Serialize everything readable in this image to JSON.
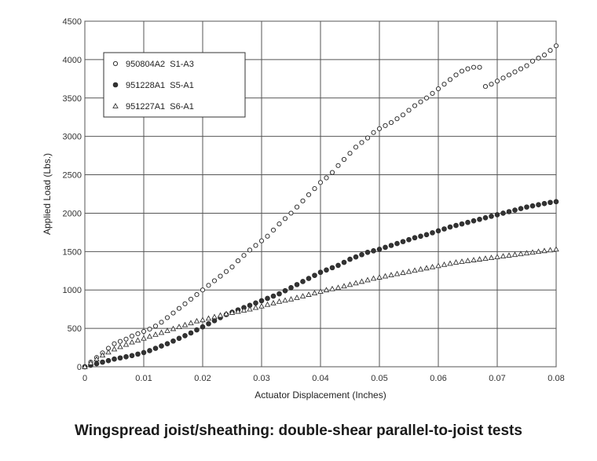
{
  "caption": "Wingspread joist/sheathing: double-shear parallel-to-joist tests",
  "chart_data": {
    "type": "scatter",
    "title": "",
    "xlabel": "Actuator Displacement (Inches)",
    "ylabel": "Applied Load (Lbs.)",
    "xlim": [
      0,
      0.08
    ],
    "ylim": [
      0,
      4500
    ],
    "x_ticks": [
      0,
      0.01,
      0.02,
      0.03,
      0.04,
      0.05,
      0.06,
      0.07,
      0.08
    ],
    "x_tick_labels": [
      "0",
      "0.01",
      "0.02",
      "0.03",
      "0.04",
      "0.05",
      "0.06",
      "0.07",
      "0.08"
    ],
    "y_ticks": [
      0,
      500,
      1000,
      1500,
      2000,
      2500,
      3000,
      3500,
      4000,
      4500
    ],
    "y_tick_labels": [
      "0",
      "500",
      "1000",
      "1500",
      "2000",
      "2500",
      "3000",
      "3500",
      "4000",
      "4500"
    ],
    "grid": true,
    "legend_position": "top-left",
    "series": [
      {
        "name": "950804A2  S1-A3",
        "marker": "open-circle",
        "x": [
          0.0,
          0.001,
          0.002,
          0.003,
          0.004,
          0.005,
          0.006,
          0.007,
          0.008,
          0.009,
          0.01,
          0.011,
          0.012,
          0.013,
          0.014,
          0.015,
          0.016,
          0.017,
          0.018,
          0.019,
          0.02,
          0.021,
          0.022,
          0.023,
          0.024,
          0.025,
          0.026,
          0.027,
          0.028,
          0.029,
          0.03,
          0.031,
          0.032,
          0.033,
          0.034,
          0.035,
          0.036,
          0.037,
          0.038,
          0.039,
          0.04,
          0.041,
          0.042,
          0.043,
          0.044,
          0.045,
          0.046,
          0.047,
          0.048,
          0.049,
          0.05,
          0.051,
          0.052,
          0.053,
          0.054,
          0.055,
          0.056,
          0.057,
          0.058,
          0.059,
          0.06,
          0.061,
          0.062,
          0.063,
          0.064,
          0.065,
          0.066,
          0.067,
          0.068,
          0.069,
          0.07,
          0.071,
          0.072,
          0.073,
          0.074,
          0.075,
          0.076,
          0.077,
          0.078,
          0.079,
          0.08
        ],
        "y": [
          0,
          60,
          120,
          180,
          240,
          300,
          330,
          360,
          400,
          430,
          460,
          490,
          530,
          580,
          640,
          700,
          760,
          820,
          880,
          940,
          1000,
          1060,
          1120,
          1180,
          1240,
          1300,
          1380,
          1450,
          1520,
          1580,
          1640,
          1700,
          1780,
          1860,
          1930,
          2000,
          2080,
          2160,
          2240,
          2320,
          2400,
          2460,
          2530,
          2620,
          2700,
          2780,
          2860,
          2920,
          2980,
          3050,
          3100,
          3140,
          3180,
          3230,
          3280,
          3340,
          3400,
          3450,
          3500,
          3560,
          3620,
          3680,
          3740,
          3800,
          3850,
          3880,
          3900,
          3900,
          3650,
          3680,
          3720,
          3760,
          3800,
          3840,
          3880,
          3920,
          3980,
          4020,
          4060,
          4120,
          4180
        ]
      },
      {
        "name": "951228A1  S5-A1",
        "marker": "filled-circle",
        "x": [
          0.0,
          0.001,
          0.002,
          0.003,
          0.004,
          0.005,
          0.006,
          0.007,
          0.008,
          0.009,
          0.01,
          0.011,
          0.012,
          0.013,
          0.014,
          0.015,
          0.016,
          0.017,
          0.018,
          0.019,
          0.02,
          0.021,
          0.022,
          0.023,
          0.024,
          0.025,
          0.026,
          0.027,
          0.028,
          0.029,
          0.03,
          0.031,
          0.032,
          0.033,
          0.034,
          0.035,
          0.036,
          0.037,
          0.038,
          0.039,
          0.04,
          0.041,
          0.042,
          0.043,
          0.044,
          0.045,
          0.046,
          0.047,
          0.048,
          0.049,
          0.05,
          0.051,
          0.052,
          0.053,
          0.054,
          0.055,
          0.056,
          0.057,
          0.058,
          0.059,
          0.06,
          0.061,
          0.062,
          0.063,
          0.064,
          0.065,
          0.066,
          0.067,
          0.068,
          0.069,
          0.07,
          0.071,
          0.072,
          0.073,
          0.074,
          0.075,
          0.076,
          0.077,
          0.078,
          0.079,
          0.08
        ],
        "y": [
          0,
          20,
          40,
          60,
          80,
          100,
          115,
          130,
          145,
          165,
          185,
          210,
          240,
          270,
          300,
          335,
          370,
          405,
          440,
          480,
          520,
          560,
          600,
          640,
          680,
          710,
          740,
          770,
          800,
          830,
          860,
          890,
          920,
          950,
          990,
          1030,
          1070,
          1110,
          1150,
          1190,
          1230,
          1260,
          1290,
          1320,
          1360,
          1400,
          1430,
          1460,
          1490,
          1510,
          1530,
          1555,
          1580,
          1605,
          1630,
          1655,
          1680,
          1700,
          1720,
          1745,
          1770,
          1795,
          1820,
          1840,
          1860,
          1880,
          1900,
          1920,
          1940,
          1960,
          1980,
          2000,
          2020,
          2040,
          2060,
          2080,
          2095,
          2110,
          2125,
          2140,
          2150
        ]
      },
      {
        "name": "951227A1  S6-A1",
        "marker": "open-triangle",
        "x": [
          0.0,
          0.001,
          0.002,
          0.003,
          0.004,
          0.005,
          0.006,
          0.007,
          0.008,
          0.009,
          0.01,
          0.011,
          0.012,
          0.013,
          0.014,
          0.015,
          0.016,
          0.017,
          0.018,
          0.019,
          0.02,
          0.021,
          0.022,
          0.023,
          0.024,
          0.025,
          0.026,
          0.027,
          0.028,
          0.029,
          0.03,
          0.031,
          0.032,
          0.033,
          0.034,
          0.035,
          0.036,
          0.037,
          0.038,
          0.039,
          0.04,
          0.041,
          0.042,
          0.043,
          0.044,
          0.045,
          0.046,
          0.047,
          0.048,
          0.049,
          0.05,
          0.051,
          0.052,
          0.053,
          0.054,
          0.055,
          0.056,
          0.057,
          0.058,
          0.059,
          0.06,
          0.061,
          0.062,
          0.063,
          0.064,
          0.065,
          0.066,
          0.067,
          0.068,
          0.069,
          0.07,
          0.071,
          0.072,
          0.073,
          0.074,
          0.075,
          0.076,
          0.077,
          0.078,
          0.079,
          0.08
        ],
        "y": [
          0,
          50,
          100,
          150,
          190,
          230,
          260,
          290,
          320,
          345,
          370,
          395,
          420,
          445,
          470,
          495,
          520,
          545,
          570,
          595,
          610,
          630,
          650,
          670,
          690,
          705,
          720,
          735,
          750,
          770,
          790,
          810,
          830,
          850,
          865,
          880,
          900,
          920,
          940,
          960,
          980,
          1000,
          1015,
          1030,
          1050,
          1070,
          1090,
          1110,
          1130,
          1150,
          1165,
          1180,
          1195,
          1210,
          1225,
          1240,
          1255,
          1270,
          1285,
          1300,
          1315,
          1330,
          1345,
          1360,
          1370,
          1380,
          1390,
          1400,
          1410,
          1420,
          1430,
          1440,
          1450,
          1460,
          1470,
          1480,
          1490,
          1500,
          1510,
          1520,
          1530
        ]
      }
    ]
  }
}
